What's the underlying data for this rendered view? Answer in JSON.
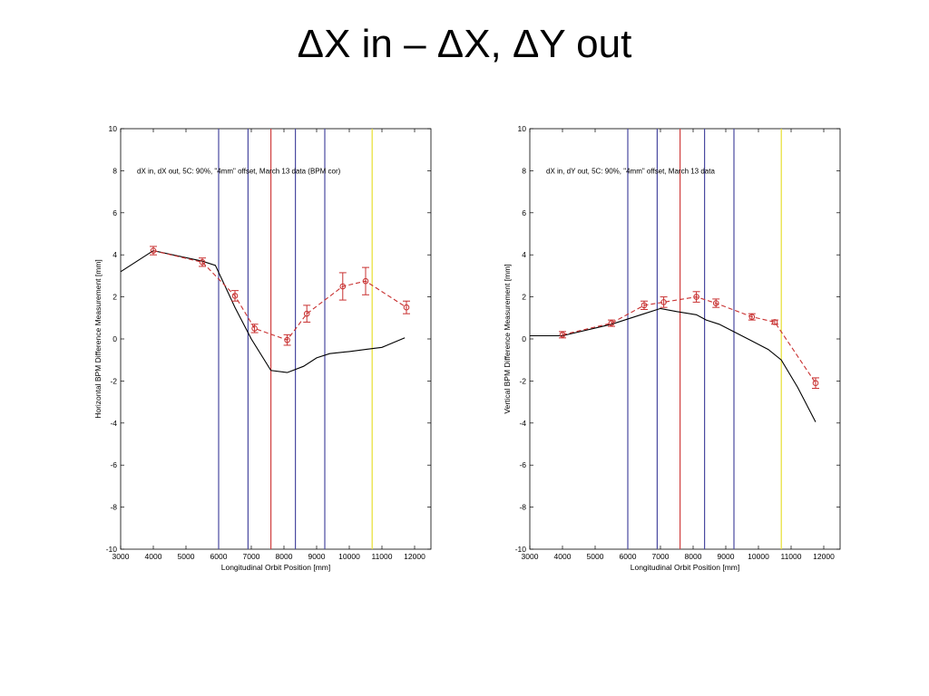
{
  "slide": {
    "title": "ΔX in – ΔX, ΔY out"
  },
  "chart_data": [
    {
      "type": "line",
      "annotation": "dX in, dX out, 5C: 90%, \"4mm\" offset, March 13 data (BPM cor)",
      "xlabel": "Longitudinal Orbit Position [mm]",
      "ylabel": "Horizontal BPM Difference Measurement [mm]",
      "xlim": [
        3000,
        12500
      ],
      "ylim": [
        -10,
        10
      ],
      "xticks": [
        3000,
        4000,
        5000,
        6000,
        7000,
        8000,
        9000,
        10000,
        11000,
        12000
      ],
      "yticks": [
        -10,
        -8,
        -6,
        -4,
        -2,
        0,
        2,
        4,
        6,
        8,
        10
      ],
      "grid": false,
      "vertical_lines": [
        {
          "x": 6000,
          "color": "#4a4aa0"
        },
        {
          "x": 6900,
          "color": "#4a4aa0"
        },
        {
          "x": 7600,
          "color": "#d04040"
        },
        {
          "x": 8350,
          "color": "#4a4aa0"
        },
        {
          "x": 9250,
          "color": "#4a4aa0"
        },
        {
          "x": 10700,
          "color": "#e8e030"
        }
      ],
      "series": [
        {
          "style": "solid",
          "color": "#000000",
          "x": [
            3000,
            4000,
            5500,
            5900,
            6500,
            7000,
            7600,
            8100,
            8600,
            9000,
            9400,
            10000,
            10500,
            11000,
            11700
          ],
          "y": [
            3.2,
            4.2,
            3.7,
            3.5,
            1.5,
            0.0,
            -1.5,
            -1.6,
            -1.3,
            -0.9,
            -0.7,
            -0.6,
            -0.5,
            -0.4,
            0.05
          ]
        },
        {
          "style": "dashed",
          "color": "#c83030",
          "markers": true,
          "x": [
            4000,
            5500,
            6500,
            7100,
            8100,
            8700,
            9800,
            10500,
            11750
          ],
          "y": [
            4.2,
            3.65,
            2.05,
            0.5,
            -0.05,
            1.2,
            2.5,
            2.75,
            1.5
          ],
          "err": [
            0.2,
            0.2,
            0.25,
            0.2,
            0.25,
            0.4,
            0.65,
            0.65,
            0.3
          ]
        }
      ]
    },
    {
      "type": "line",
      "annotation": "dX in, dY out, 5C: 90%, \"4mm\" offset, March 13 data",
      "xlabel": "Longitudinal Orbit Position [mm]",
      "ylabel": "Vertical BPM Difference Measurement [mm]",
      "xlim": [
        3000,
        12500
      ],
      "ylim": [
        -10,
        10
      ],
      "xticks": [
        3000,
        4000,
        5000,
        6000,
        7000,
        8000,
        9000,
        10000,
        11000,
        12000
      ],
      "yticks": [
        -10,
        -8,
        -6,
        -4,
        -2,
        0,
        2,
        4,
        6,
        8,
        10
      ],
      "grid": false,
      "vertical_lines": [
        {
          "x": 6000,
          "color": "#4a4aa0"
        },
        {
          "x": 6900,
          "color": "#4a4aa0"
        },
        {
          "x": 7600,
          "color": "#d04040"
        },
        {
          "x": 8350,
          "color": "#4a4aa0"
        },
        {
          "x": 9250,
          "color": "#4a4aa0"
        },
        {
          "x": 10700,
          "color": "#e8e030"
        }
      ],
      "series": [
        {
          "style": "solid",
          "color": "#000000",
          "x": [
            3000,
            4000,
            5500,
            6500,
            7000,
            7500,
            8100,
            8400,
            8800,
            9300,
            9800,
            10300,
            10700,
            11200,
            11750
          ],
          "y": [
            0.15,
            0.15,
            0.7,
            1.2,
            1.45,
            1.3,
            1.15,
            0.9,
            0.7,
            0.3,
            -0.1,
            -0.5,
            -1.0,
            -2.3,
            -3.95
          ]
        },
        {
          "style": "dashed",
          "color": "#c83030",
          "markers": true,
          "x": [
            4000,
            5500,
            6500,
            7100,
            8100,
            8700,
            9800,
            10500,
            11750
          ],
          "y": [
            0.2,
            0.75,
            1.6,
            1.75,
            2.0,
            1.7,
            1.05,
            0.8,
            -2.1
          ],
          "err": [
            0.15,
            0.15,
            0.2,
            0.25,
            0.25,
            0.2,
            0.15,
            0.1,
            0.25
          ]
        }
      ]
    }
  ]
}
